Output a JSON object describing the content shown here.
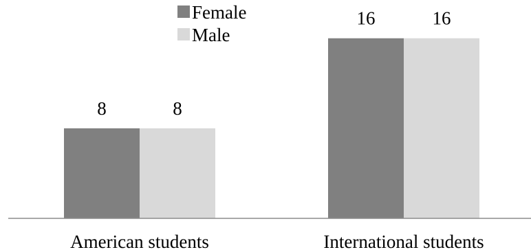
{
  "chart_data": {
    "type": "bar",
    "categories": [
      "American students",
      "International students"
    ],
    "series": [
      {
        "name": "Female",
        "values": [
          8,
          16
        ],
        "color": "#808080"
      },
      {
        "name": "Male",
        "values": [
          8,
          16
        ],
        "color": "#d9d9d9"
      }
    ],
    "ylim": [
      0,
      19.4
    ],
    "grid": false,
    "legend": "top-left",
    "data_labels": true
  }
}
